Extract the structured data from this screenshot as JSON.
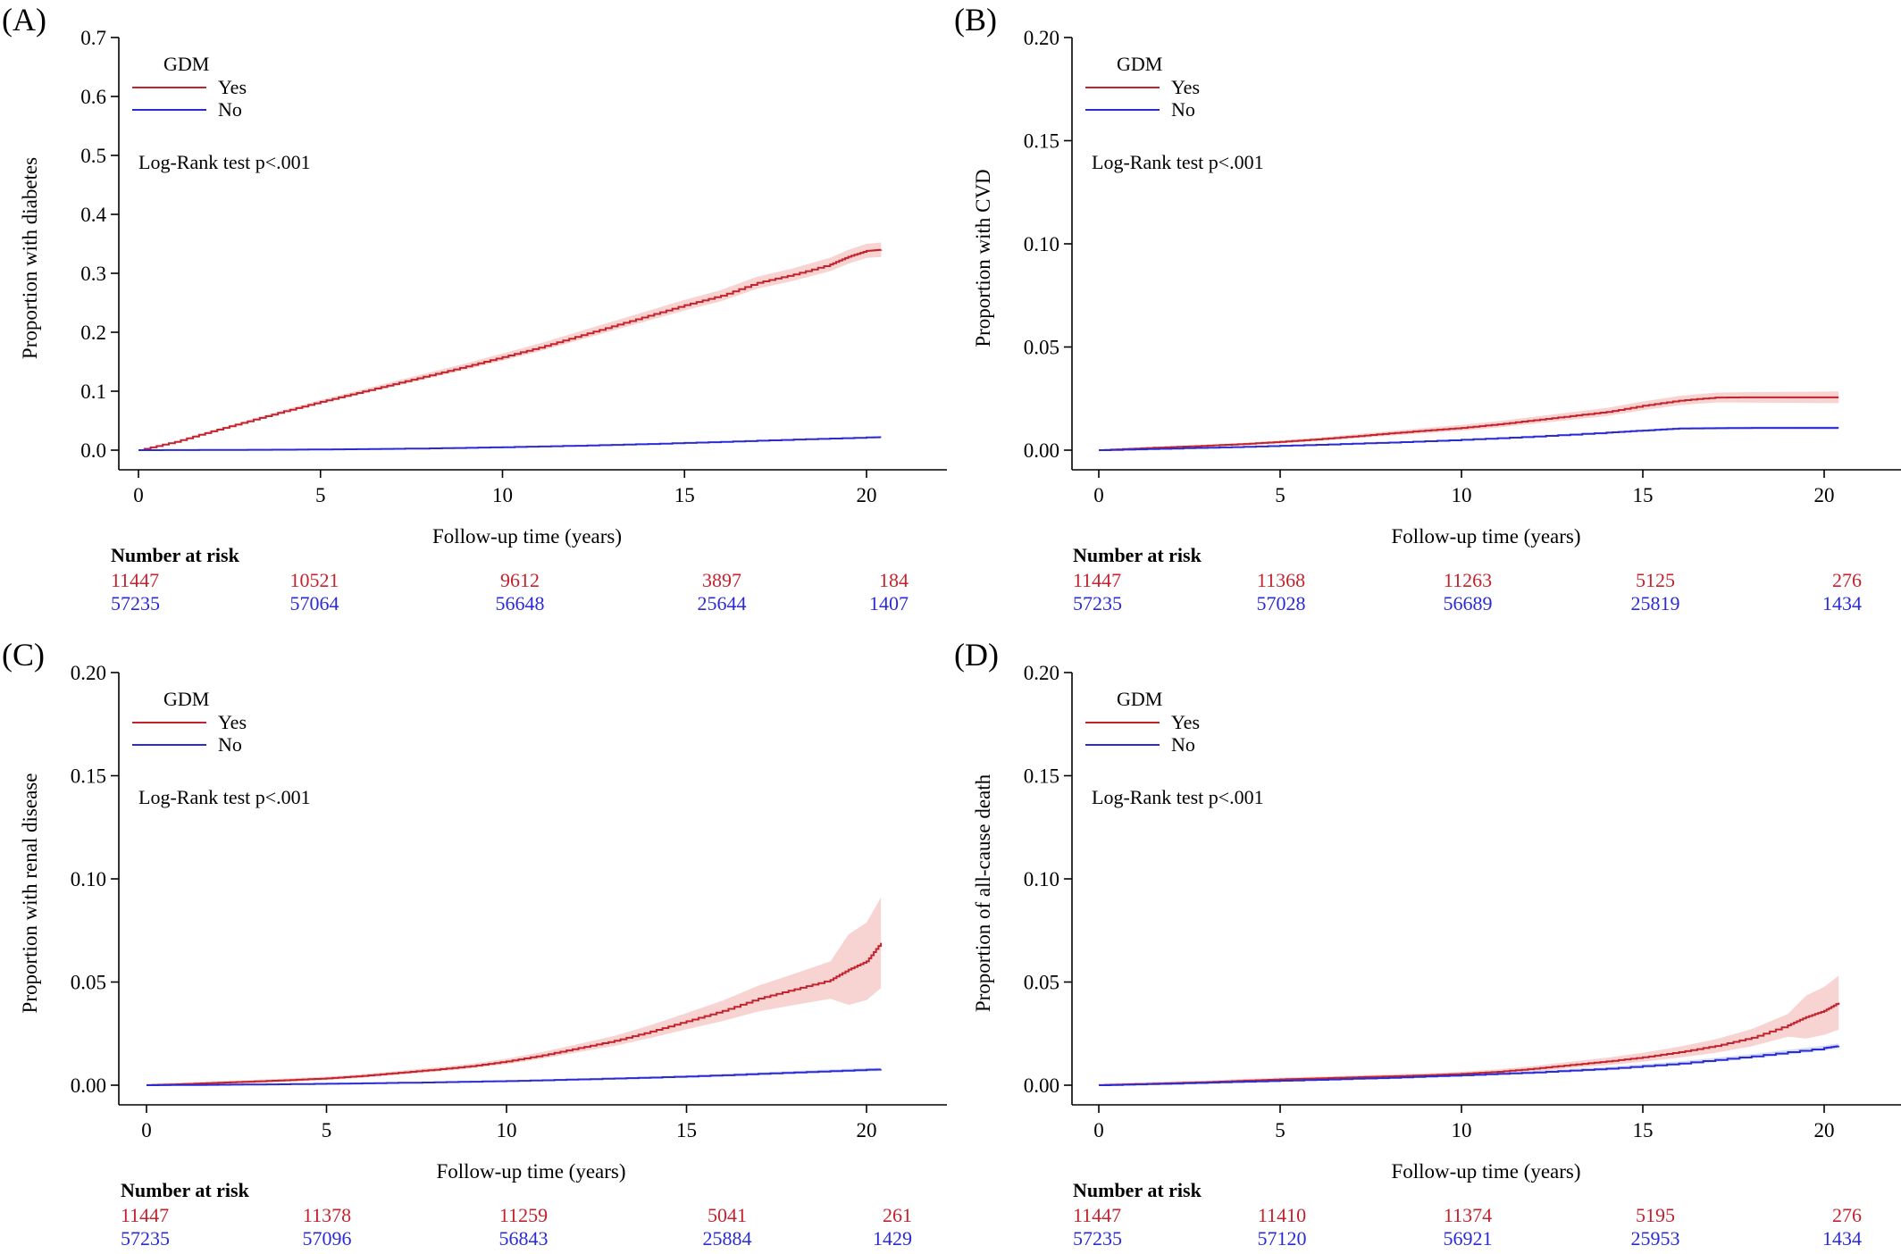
{
  "colors": {
    "yes": "#c4232e",
    "no": "#2b2bd6",
    "band_yes": "#f4c6c2",
    "band_no": "#c9d4f3",
    "axis": "#000000"
  },
  "chart_data": [
    {
      "type": "line",
      "panel_label": "(A)",
      "xlabel": "Follow-up time (years)",
      "ylabel": "Proportion with diabetes",
      "xlim": [
        0,
        20.5
      ],
      "ylim": [
        0,
        0.7
      ],
      "xticks": [
        0,
        5,
        10,
        15,
        20
      ],
      "yticks": [
        "0.0",
        "0.1",
        "0.2",
        "0.3",
        "0.4",
        "0.5",
        "0.6",
        "0.7"
      ],
      "legend_title": "GDM",
      "legend_position": "top-left",
      "annotation": "Log-Rank test p<.001",
      "series": [
        {
          "name": "Yes",
          "color": "#c4232e",
          "x": [
            0,
            1,
            2,
            3,
            4,
            5,
            6,
            7,
            8,
            9,
            10,
            11,
            12,
            13,
            14,
            15,
            16,
            17,
            18,
            19,
            19.5,
            20,
            20.4
          ],
          "y": [
            0,
            0.014,
            0.032,
            0.049,
            0.066,
            0.082,
            0.097,
            0.112,
            0.127,
            0.142,
            0.158,
            0.174,
            0.192,
            0.21,
            0.228,
            0.246,
            0.262,
            0.284,
            0.298,
            0.315,
            0.328,
            0.338,
            0.34
          ],
          "ci": 0.012
        },
        {
          "name": "No",
          "color": "#2b2bd6",
          "x": [
            0,
            2,
            4,
            6,
            8,
            10,
            12,
            14,
            16,
            18,
            20,
            20.4
          ],
          "y": [
            0,
            0.0003,
            0.0008,
            0.0016,
            0.003,
            0.005,
            0.0075,
            0.0105,
            0.014,
            0.018,
            0.0215,
            0.022
          ],
          "ci": 0.001
        }
      ],
      "risk_table": {
        "title": "Number at risk",
        "rows": [
          {
            "group": "Yes",
            "values": [
              "11447",
              "10521",
              "9612",
              "3897",
              "184"
            ]
          },
          {
            "group": "No",
            "values": [
              "57235",
              "57064",
              "56648",
              "25644",
              "1407"
            ]
          }
        ]
      }
    },
    {
      "type": "line",
      "panel_label": "(B)",
      "xlabel": "Follow-up time (years)",
      "ylabel": "Proportion with CVD",
      "xlim": [
        0,
        20.5
      ],
      "ylim": [
        0,
        0.2
      ],
      "xticks": [
        0,
        5,
        10,
        15,
        20
      ],
      "yticks": [
        "0.00",
        "0.05",
        "0.10",
        "0.15",
        "0.20"
      ],
      "legend_title": "GDM",
      "legend_position": "top-left",
      "annotation": "Log-Rank test p<.001",
      "series": [
        {
          "name": "Yes",
          "color": "#c4232e",
          "x": [
            0,
            1,
            2,
            3,
            4,
            5,
            6,
            7,
            8,
            9,
            10,
            11,
            12,
            13,
            14,
            15,
            16,
            17,
            18,
            19,
            20,
            20.4
          ],
          "y": [
            0,
            0.0008,
            0.0015,
            0.0022,
            0.003,
            0.004,
            0.0052,
            0.0066,
            0.0081,
            0.0095,
            0.0108,
            0.0125,
            0.0145,
            0.0165,
            0.0185,
            0.0215,
            0.024,
            0.0255,
            0.0256,
            0.0256,
            0.0256,
            0.0256
          ],
          "ci": 0.0028
        },
        {
          "name": "No",
          "color": "#2b2bd6",
          "x": [
            0,
            2,
            4,
            6,
            8,
            10,
            12,
            14,
            15,
            16,
            18,
            20,
            20.4
          ],
          "y": [
            0,
            0.0008,
            0.0016,
            0.0026,
            0.0037,
            0.005,
            0.0066,
            0.0085,
            0.0095,
            0.0105,
            0.0108,
            0.0108,
            0.0108
          ],
          "ci": 0.0007
        }
      ],
      "risk_table": {
        "title": "Number at risk",
        "rows": [
          {
            "group": "Yes",
            "values": [
              "11447",
              "11368",
              "11263",
              "5125",
              "276"
            ]
          },
          {
            "group": "No",
            "values": [
              "57235",
              "57028",
              "56689",
              "25819",
              "1434"
            ]
          }
        ]
      }
    },
    {
      "type": "line",
      "panel_label": "(C)",
      "xlabel": "Follow-up time (years)",
      "ylabel": "Proportion with renal disease",
      "xlim": [
        0,
        20.5
      ],
      "ylim": [
        0,
        0.2
      ],
      "xticks": [
        0,
        5,
        10,
        15,
        20
      ],
      "yticks": [
        "0.00",
        "0.05",
        "0.10",
        "0.15",
        "0.20"
      ],
      "legend_title": "GDM",
      "legend_position": "top-left",
      "annotation": "Log-Rank test p<.001",
      "series": [
        {
          "name": "Yes",
          "color": "#c4232e",
          "x": [
            0,
            1,
            2,
            3,
            4,
            5,
            6,
            7,
            8,
            9,
            10,
            11,
            12,
            13,
            14,
            15,
            16,
            17,
            18,
            19,
            19.5,
            20,
            20.4
          ],
          "y": [
            0,
            0.0005,
            0.0012,
            0.0018,
            0.0025,
            0.0033,
            0.0045,
            0.006,
            0.0075,
            0.0092,
            0.0115,
            0.0145,
            0.018,
            0.0215,
            0.026,
            0.031,
            0.036,
            0.042,
            0.0465,
            0.051,
            0.056,
            0.06,
            0.069
          ],
          "ci_profile": true
        },
        {
          "name": "No",
          "color": "#2b2bd6",
          "x": [
            0,
            2,
            4,
            6,
            8,
            10,
            12,
            14,
            16,
            18,
            20,
            20.4
          ],
          "y": [
            0,
            0.0002,
            0.0005,
            0.0009,
            0.0014,
            0.002,
            0.0028,
            0.0037,
            0.0048,
            0.0062,
            0.0075,
            0.0076
          ],
          "ci": 0.0008
        }
      ],
      "risk_table": {
        "title": "Number at risk",
        "rows": [
          {
            "group": "Yes",
            "values": [
              "11447",
              "11378",
              "11259",
              "5041",
              "261"
            ]
          },
          {
            "group": "No",
            "values": [
              "57235",
              "57096",
              "56843",
              "25884",
              "1429"
            ]
          }
        ]
      }
    },
    {
      "type": "line",
      "panel_label": "(D)",
      "xlabel": "Follow-up time (years)",
      "ylabel": "Proportion of all-cause death",
      "xlim": [
        0,
        20.5
      ],
      "ylim": [
        0,
        0.2
      ],
      "xticks": [
        0,
        5,
        10,
        15,
        20
      ],
      "yticks": [
        "0.00",
        "0.05",
        "0.10",
        "0.15",
        "0.20"
      ],
      "legend_title": "GDM",
      "legend_position": "top-left",
      "annotation": "Log-Rank test p<.001",
      "series": [
        {
          "name": "Yes",
          "color": "#c4232e",
          "x": [
            0,
            1,
            2,
            3,
            4,
            5,
            6,
            7,
            8,
            9,
            10,
            11,
            12,
            13,
            14,
            15,
            16,
            17,
            18,
            19,
            19.5,
            20,
            20.4
          ],
          "y": [
            0,
            0.0005,
            0.001,
            0.0015,
            0.0022,
            0.0028,
            0.0033,
            0.0038,
            0.0043,
            0.0048,
            0.0055,
            0.0065,
            0.008,
            0.0098,
            0.0115,
            0.0135,
            0.016,
            0.019,
            0.023,
            0.029,
            0.033,
            0.036,
            0.04
          ],
          "ci_profile": true
        },
        {
          "name": "No",
          "color": "#2b2bd6",
          "x": [
            0,
            2,
            4,
            6,
            8,
            10,
            12,
            14,
            16,
            18,
            20,
            20.4
          ],
          "y": [
            0,
            0.0008,
            0.0017,
            0.0026,
            0.0036,
            0.0048,
            0.0062,
            0.008,
            0.0105,
            0.014,
            0.018,
            0.019
          ],
          "ci": 0.0012
        }
      ],
      "risk_table": {
        "title": "Number at risk",
        "rows": [
          {
            "group": "Yes",
            "values": [
              "11447",
              "11410",
              "11374",
              "5195",
              "276"
            ]
          },
          {
            "group": "No",
            "values": [
              "57235",
              "57120",
              "56921",
              "25953",
              "1434"
            ]
          }
        ]
      }
    }
  ]
}
